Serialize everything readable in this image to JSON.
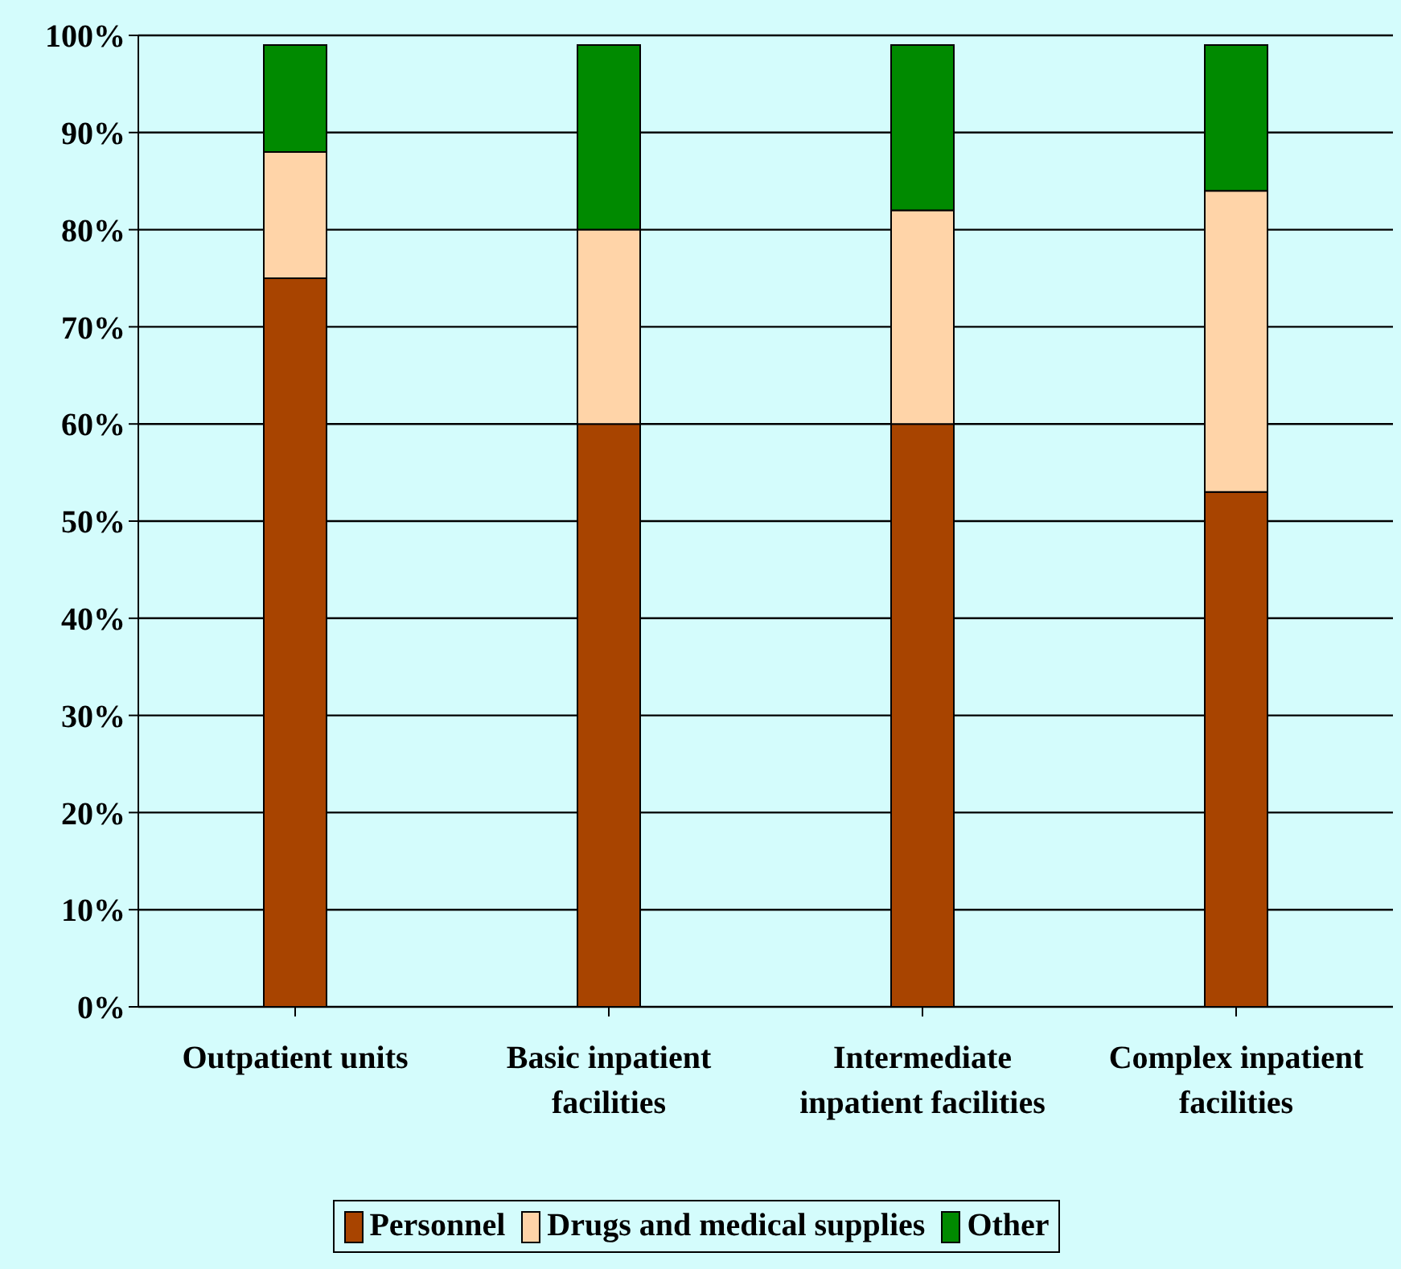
{
  "chart_data": {
    "type": "bar",
    "stacked": true,
    "categories": [
      "Outpatient units",
      "Basic inpatient facilities",
      "Intermediate inpatient facilities",
      "Complex inpatient facilities"
    ],
    "series": [
      {
        "name": "Personnel",
        "color": "#a84400",
        "values": [
          75,
          60,
          60,
          53
        ]
      },
      {
        "name": "Drugs and medical supplies",
        "color": "#ffd4a8",
        "values": [
          13,
          20,
          22,
          31
        ]
      },
      {
        "name": "Other",
        "color": "#008a00",
        "values": [
          11,
          19,
          17,
          15
        ]
      }
    ],
    "ylim": [
      0,
      100
    ],
    "yticks": [
      {
        "value": 0,
        "label": "0%"
      },
      {
        "value": 10,
        "label": "10%"
      },
      {
        "value": 20,
        "label": "20%"
      },
      {
        "value": 30,
        "label": "30%"
      },
      {
        "value": 40,
        "label": "40%"
      },
      {
        "value": 50,
        "label": "50%"
      },
      {
        "value": 60,
        "label": "60%"
      },
      {
        "value": 70,
        "label": "70%"
      },
      {
        "value": 80,
        "label": "80%"
      },
      {
        "value": 90,
        "label": "90%"
      },
      {
        "value": 100,
        "label": "100%"
      }
    ],
    "grid": "y",
    "legend": "bottom"
  }
}
